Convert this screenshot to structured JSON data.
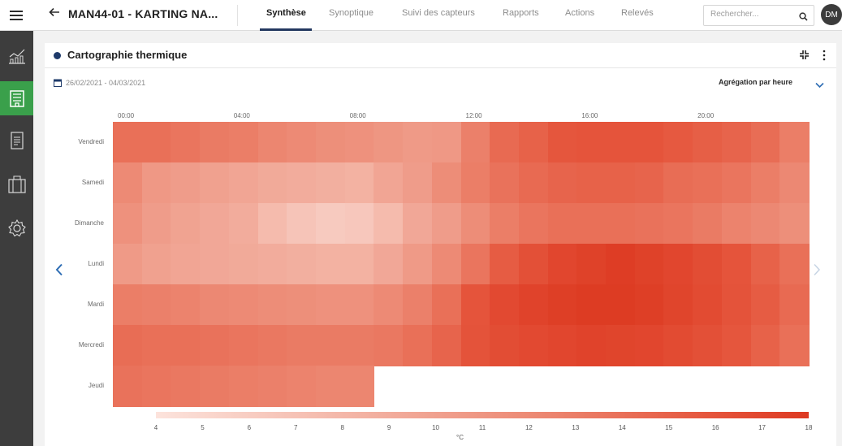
{
  "header": {
    "title": "MAN44-01 - KARTING NA...",
    "tabs": [
      {
        "label": "Synthèse",
        "active": true
      },
      {
        "label": "Synoptique",
        "active": false
      },
      {
        "label": "Suivi des capteurs",
        "active": false
      },
      {
        "label": "Rapports",
        "active": false
      },
      {
        "label": "Actions",
        "active": false
      },
      {
        "label": "Relevés",
        "active": false
      }
    ],
    "search_placeholder": "Rechercher...",
    "avatar_initials": "DM"
  },
  "sidebar": {
    "items": [
      {
        "icon": "chart-icon",
        "active": false
      },
      {
        "icon": "building-icon",
        "active": true
      },
      {
        "icon": "document-icon",
        "active": false
      },
      {
        "icon": "briefcase-icon",
        "active": false
      },
      {
        "icon": "gear-icon",
        "active": false
      }
    ]
  },
  "card": {
    "title": "Cartographie thermique",
    "date_range": "26/02/2021 - 04/03/2021",
    "aggregation_label": "Agrégation par heure"
  },
  "chart_data": {
    "type": "heatmap",
    "title": "",
    "xlabel": "",
    "ylabel": "",
    "x_tick_labels": [
      "00:00",
      "04:00",
      "08:00",
      "12:00",
      "16:00",
      "20:00"
    ],
    "hours": [
      0,
      1,
      2,
      3,
      4,
      5,
      6,
      7,
      8,
      9,
      10,
      11,
      12,
      13,
      14,
      15,
      16,
      17,
      18,
      19,
      20,
      21,
      22,
      23
    ],
    "days": [
      "Vendredi",
      "Samedi",
      "Dimanche",
      "Lundi",
      "Mardi",
      "Mercredi",
      "Jeudi"
    ],
    "values": [
      [
        12.6,
        12.6,
        12.2,
        11.8,
        11.6,
        11.0,
        10.6,
        10.2,
        10.0,
        9.6,
        9.2,
        9.4,
        11.4,
        13.0,
        13.6,
        14.4,
        14.6,
        14.6,
        14.6,
        14.2,
        13.8,
        13.4,
        12.8,
        11.6
      ],
      [
        10.6,
        9.4,
        9.0,
        8.6,
        8.2,
        7.8,
        7.6,
        7.4,
        7.2,
        8.2,
        9.0,
        10.4,
        11.6,
        12.4,
        13.0,
        13.4,
        13.6,
        13.6,
        13.4,
        12.8,
        12.6,
        12.2,
        11.6,
        10.8
      ],
      [
        10.0,
        9.0,
        8.4,
        8.0,
        7.6,
        6.6,
        6.0,
        5.6,
        5.8,
        6.6,
        8.0,
        9.0,
        10.4,
        11.6,
        12.2,
        12.6,
        12.6,
        12.6,
        12.4,
        12.2,
        11.8,
        11.2,
        10.8,
        10.2
      ],
      [
        9.2,
        8.6,
        8.2,
        8.0,
        7.8,
        7.6,
        7.4,
        7.2,
        7.2,
        8.0,
        9.2,
        10.6,
        12.2,
        14.0,
        15.2,
        16.4,
        17.0,
        17.6,
        17.0,
        16.4,
        15.6,
        14.6,
        13.6,
        12.6
      ],
      [
        11.6,
        11.4,
        11.2,
        10.8,
        10.6,
        10.4,
        10.2,
        10.0,
        10.0,
        10.6,
        11.4,
        12.6,
        14.6,
        16.0,
        16.8,
        17.4,
        17.8,
        17.8,
        17.4,
        16.6,
        15.8,
        14.8,
        14.0,
        13.0
      ],
      [
        12.8,
        12.6,
        12.6,
        12.4,
        12.2,
        12.0,
        11.8,
        11.8,
        11.8,
        12.0,
        12.6,
        13.4,
        14.8,
        15.6,
        16.0,
        16.4,
        16.8,
        16.6,
        16.4,
        15.8,
        15.2,
        14.4,
        13.6,
        12.6
      ],
      [
        12.4,
        12.2,
        12.0,
        11.8,
        11.6,
        11.4,
        11.2,
        11.0,
        11.0
      ]
    ],
    "colorscale_ticks": [
      4,
      5,
      6,
      7,
      8,
      9,
      10,
      11,
      12,
      13,
      14,
      15,
      16,
      17,
      18
    ],
    "colorscale_range": [
      4,
      18
    ],
    "colorscale_colors": [
      "#fce3dc",
      "#f2ad9d",
      "#ec8670",
      "#e5553c",
      "#dd3a22"
    ],
    "unit": "°C",
    "grid": false,
    "legend": "bottom"
  }
}
